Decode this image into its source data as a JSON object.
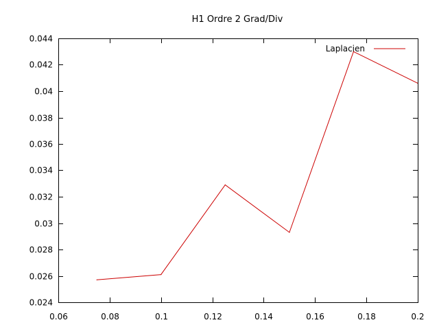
{
  "chart_data": {
    "type": "line",
    "title": "H1 Ordre 2 Grad/Div",
    "xlabel": "",
    "ylabel": "",
    "xlim": [
      0.06,
      0.2
    ],
    "ylim": [
      0.024,
      0.044
    ],
    "x_ticks": [
      "0.06",
      "0.08",
      "0.1",
      "0.12",
      "0.14",
      "0.16",
      "0.18",
      "0.2"
    ],
    "y_ticks": [
      "0.024",
      "0.026",
      "0.028",
      "0.03",
      "0.032",
      "0.034",
      "0.036",
      "0.038",
      "0.04",
      "0.042",
      "0.044"
    ],
    "grid": false,
    "legend": {
      "position": "top-right"
    },
    "series": [
      {
        "name": "Laplacien",
        "color": "#cc0000",
        "x": [
          0.075,
          0.1,
          0.125,
          0.15,
          0.175,
          0.2
        ],
        "y": [
          0.0257,
          0.0261,
          0.0329,
          0.0293,
          0.043,
          0.0406
        ]
      }
    ]
  }
}
